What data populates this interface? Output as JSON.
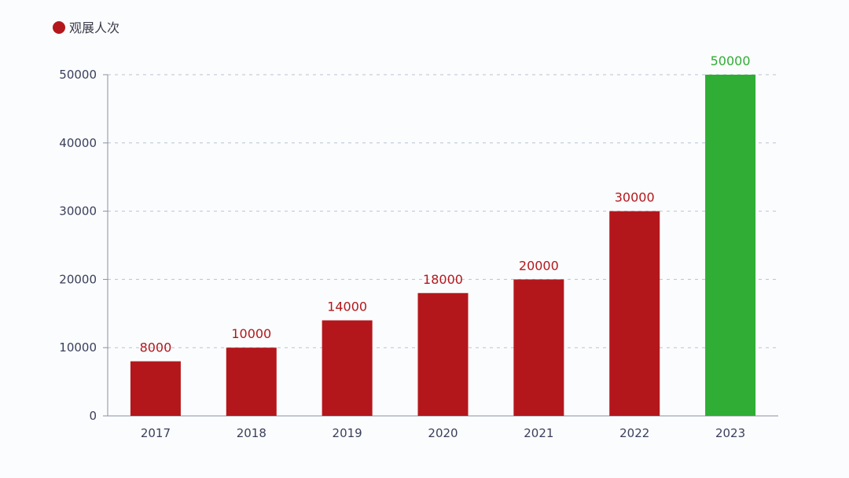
{
  "chart_data": {
    "type": "bar",
    "categories": [
      "2017",
      "2018",
      "2019",
      "2020",
      "2021",
      "2022",
      "2023"
    ],
    "series": [
      {
        "name": "观展人次",
        "values": [
          8000,
          10000,
          14000,
          18000,
          20000,
          30000,
          50000
        ]
      }
    ],
    "data_labels": [
      "8000",
      "10000",
      "14000",
      "18000",
      "20000",
      "30000",
      "50000"
    ],
    "yticks": [
      0,
      10000,
      20000,
      30000,
      40000,
      50000
    ],
    "ylim": [
      0,
      50000
    ],
    "grid": true,
    "legend_position": "top-left",
    "colors": {
      "default_bar": "#b3171c",
      "highlight_bar": "#2fad35",
      "highlight_index": 6
    }
  }
}
